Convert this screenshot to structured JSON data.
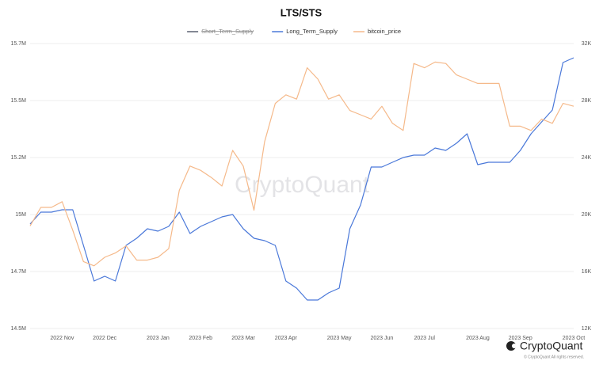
{
  "chart_data": {
    "type": "line",
    "title": "LTS/STS",
    "watermark": "CryptoQuant",
    "brand": "CryptoQuant",
    "copyright": "© CryptoQuant All rights reserved.",
    "grid": true,
    "legend": "top",
    "categories": [
      null,
      null,
      null,
      "2022 Nov",
      null,
      null,
      null,
      "2022 Dec",
      null,
      null,
      null,
      null,
      "2023 Jan",
      null,
      null,
      null,
      "2023 Feb",
      null,
      null,
      null,
      "2023 Mar",
      null,
      null,
      null,
      "2023 Apr",
      null,
      null,
      null,
      null,
      "2023 May",
      null,
      null,
      null,
      "2023 Jun",
      null,
      null,
      null,
      "2023 Jul",
      null,
      null,
      null,
      null,
      "2023 Aug",
      null,
      null,
      null,
      "2023 Sep",
      null,
      null,
      null,
      null,
      "2023 Oct"
    ],
    "ylim": [
      14500000,
      15700000
    ],
    "yticks": [
      {
        "value": 14500000,
        "label": "14.5M"
      },
      {
        "value": 14740000,
        "label": "14.7M"
      },
      {
        "value": 14980000,
        "label": "15M"
      },
      {
        "value": 15220000,
        "label": "15.2M"
      },
      {
        "value": 15460000,
        "label": "15.5M"
      },
      {
        "value": 15700000,
        "label": "15.7M"
      }
    ],
    "y2lim": [
      12000,
      32000
    ],
    "y2ticks": [
      {
        "value": 12000,
        "label": "12K"
      },
      {
        "value": 16000,
        "label": "16K"
      },
      {
        "value": 20000,
        "label": "20K"
      },
      {
        "value": 24000,
        "label": "24K"
      },
      {
        "value": 28000,
        "label": "28K"
      },
      {
        "value": 32000,
        "label": "32K"
      }
    ],
    "series": [
      {
        "name": "Short_Term_Supply",
        "color": "#5a6070",
        "hidden": true,
        "values": [
          null,
          null,
          null,
          null,
          null,
          null,
          null,
          null,
          null,
          null,
          null,
          null,
          null,
          null,
          null,
          null,
          null,
          null,
          null,
          null,
          null,
          null,
          null,
          null,
          null,
          null,
          null,
          null,
          null,
          null,
          null,
          null,
          null,
          null,
          null,
          null,
          null,
          null,
          null,
          null,
          null,
          null,
          null,
          null,
          null,
          null,
          null,
          null,
          null,
          null,
          null,
          null
        ]
      },
      {
        "name": "Long_Term_Supply",
        "color": "#4a78d9",
        "values": [
          14940000,
          14990000,
          14990000,
          15000000,
          15000000,
          14850000,
          14700000,
          14720000,
          14700000,
          14850000,
          14880000,
          14920000,
          14910000,
          14930000,
          14990000,
          14900000,
          14930000,
          14950000,
          14970000,
          14980000,
          14920000,
          14880000,
          14870000,
          14850000,
          14700000,
          14670000,
          14620000,
          14620000,
          14650000,
          14670000,
          14920000,
          15020000,
          15180000,
          15180000,
          15200000,
          15220000,
          15230000,
          15230000,
          15260000,
          15250000,
          15280000,
          15320000,
          15190000,
          15200000,
          15200000,
          15200000,
          15250000,
          15320000,
          15370000,
          15420000,
          15620000,
          15640000
        ]
      },
      {
        "name": "bitcoin_price",
        "color": "#f5b98a",
        "axis": "y2",
        "values": [
          19200,
          20500,
          20500,
          20900,
          18900,
          16700,
          16400,
          17000,
          17300,
          17800,
          16800,
          16800,
          17000,
          17600,
          21700,
          23400,
          23100,
          22600,
          22000,
          24500,
          23400,
          20300,
          25100,
          27800,
          28400,
          28100,
          30300,
          29500,
          28100,
          28400,
          27300,
          27000,
          26700,
          27600,
          26400,
          25900,
          30600,
          30300,
          30700,
          30600,
          29800,
          29500,
          29200,
          29200,
          29200,
          26200,
          26200,
          25900,
          26700,
          26400,
          27800,
          27600
        ]
      }
    ]
  }
}
